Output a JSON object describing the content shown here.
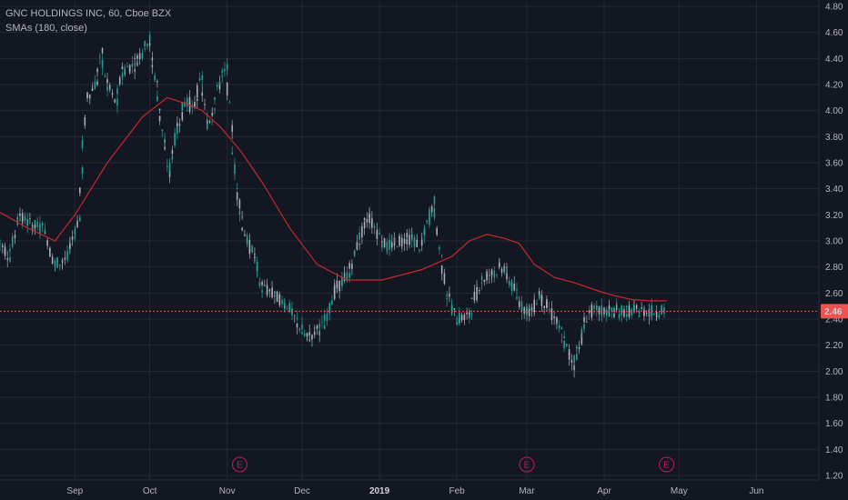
{
  "legend": {
    "symbol_line": "GNC HOLDINGS INC, 60, Cboe BZX",
    "indicator_line": "SMAs (180, close)"
  },
  "colors": {
    "background": "#131722",
    "grid": "#242833",
    "candle": "#26a69a",
    "sma": "#c62828",
    "price_line": "#ef5350",
    "earnings": "#c2185b"
  },
  "chart_data": {
    "type": "line",
    "title": "GNC HOLDINGS INC, 60, Cboe BZX",
    "x_tick_labels": [
      "Sep",
      "Oct",
      "Nov",
      "Dec",
      "2019",
      "Feb",
      "Mar",
      "Apr",
      "May",
      "Jun"
    ],
    "y_tick_labels": [
      "1.20",
      "1.40",
      "1.60",
      "1.80",
      "2.00",
      "2.20",
      "2.40",
      "2.60",
      "2.80",
      "3.00",
      "3.20",
      "3.40",
      "3.60",
      "3.80",
      "4.00",
      "4.20",
      "4.40",
      "4.60",
      "4.80"
    ],
    "ylim": [
      1.2,
      4.8
    ],
    "xlim": [
      "2018-08-02",
      "2019-06-26"
    ],
    "grid": true,
    "legend_position": "top-left",
    "last_price": 2.46,
    "last_price_label": "2.46",
    "earnings_label": "E",
    "earnings_dates": [
      "2018-11-06",
      "2019-03-01",
      "2019-04-26"
    ],
    "series": [
      {
        "type": "price",
        "x": [
          "2018-08-02",
          "2018-08-06",
          "2018-08-10",
          "2018-08-15",
          "2018-08-20",
          "2018-08-24",
          "2018-08-29",
          "2018-09-03",
          "2018-09-06",
          "2018-09-10",
          "2018-09-12",
          "2018-09-14",
          "2018-09-18",
          "2018-09-20",
          "2018-09-25",
          "2018-10-01",
          "2018-10-04",
          "2018-10-09",
          "2018-10-12",
          "2018-10-16",
          "2018-10-19",
          "2018-10-22",
          "2018-10-24",
          "2018-10-26",
          "2018-10-29",
          "2018-11-01",
          "2018-11-05",
          "2018-11-06",
          "2018-11-07",
          "2018-11-09",
          "2018-11-12",
          "2018-11-15",
          "2018-11-19",
          "2018-11-26",
          "2018-12-03",
          "2018-12-10",
          "2018-12-14",
          "2018-12-20",
          "2018-12-24",
          "2018-12-28",
          "2019-01-04",
          "2019-01-09",
          "2019-01-14",
          "2019-01-18",
          "2019-01-23",
          "2019-01-28",
          "2019-02-01",
          "2019-02-06",
          "2019-02-11",
          "2019-02-15",
          "2019-02-20",
          "2019-02-25",
          "2019-02-27",
          "2019-03-01",
          "2019-03-04",
          "2019-03-06",
          "2019-03-11",
          "2019-03-15",
          "2019-03-20",
          "2019-03-26",
          "2019-03-29",
          "2019-04-02",
          "2019-04-05",
          "2019-04-10",
          "2019-04-15",
          "2019-04-19",
          "2019-04-22",
          "2019-04-24",
          "2019-04-26"
        ],
        "values": [
          3.0,
          2.88,
          3.2,
          3.12,
          3.1,
          2.82,
          2.86,
          3.18,
          4.1,
          4.22,
          4.45,
          4.2,
          4.05,
          4.3,
          4.35,
          4.55,
          4.2,
          3.5,
          3.85,
          4.1,
          4.0,
          4.25,
          3.9,
          3.95,
          4.2,
          4.32,
          3.4,
          3.3,
          3.18,
          3.0,
          2.9,
          2.65,
          2.6,
          2.5,
          2.25,
          2.35,
          2.6,
          2.75,
          3.0,
          3.2,
          2.95,
          3.0,
          3.02,
          2.95,
          3.3,
          2.62,
          2.4,
          2.42,
          2.7,
          2.75,
          2.8,
          2.6,
          2.5,
          2.48,
          2.45,
          2.6,
          2.45,
          2.3,
          2.05,
          2.46,
          2.46,
          2.46,
          2.46,
          2.46,
          2.46,
          2.46,
          2.46,
          2.46,
          2.46
        ]
      },
      {
        "type": "sma",
        "x": [
          "2018-08-02",
          "2018-08-13",
          "2018-08-24",
          "2018-09-01",
          "2018-09-14",
          "2018-09-28",
          "2018-10-08",
          "2018-10-16",
          "2018-10-22",
          "2018-10-29",
          "2018-11-06",
          "2018-11-15",
          "2018-11-26",
          "2018-12-07",
          "2018-12-19",
          "2019-01-02",
          "2019-01-18",
          "2019-01-30",
          "2019-02-06",
          "2019-02-13",
          "2019-02-20",
          "2019-02-26",
          "2019-03-04",
          "2019-03-12",
          "2019-03-20",
          "2019-03-29",
          "2019-04-05",
          "2019-04-12",
          "2019-04-19",
          "2019-04-26"
        ],
        "values": [
          3.22,
          3.1,
          3.0,
          3.2,
          3.6,
          3.95,
          4.1,
          4.05,
          4.0,
          3.88,
          3.7,
          3.45,
          3.1,
          2.82,
          2.7,
          2.7,
          2.78,
          2.88,
          3.0,
          3.05,
          3.02,
          2.98,
          2.82,
          2.72,
          2.68,
          2.62,
          2.58,
          2.55,
          2.54,
          2.54
        ]
      }
    ]
  }
}
